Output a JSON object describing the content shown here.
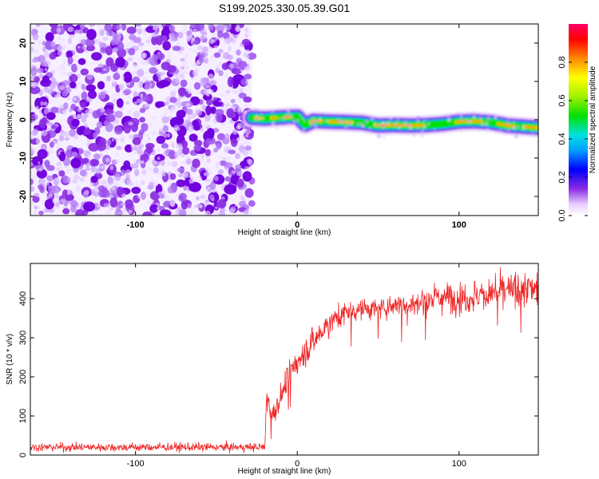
{
  "title": "S199.2025.330.05.39.G01",
  "colors": {
    "snr_line": "#ee2222",
    "speckle": "#7a00e0",
    "axis": "#000000"
  },
  "chart_data": [
    {
      "type": "heatmap",
      "name": "spectrogram",
      "xlabel": "Height of straight line (km)",
      "ylabel": "Frequency (Hz)",
      "xlim": [
        -165,
        149
      ],
      "ylim": [
        -25,
        25
      ],
      "x_ticks": [
        -100,
        0,
        100
      ],
      "y_ticks": [
        -20,
        -10,
        0,
        10,
        20
      ],
      "noise_region_x": [
        -165,
        -28
      ],
      "signal_track": {
        "x": [
          -28,
          -20,
          -10,
          0,
          5,
          10,
          20,
          30,
          40,
          50,
          60,
          70,
          80,
          90,
          100,
          110,
          120,
          130,
          140,
          149
        ],
        "freq_hz": [
          0.5,
          0.3,
          0.6,
          0.8,
          -1.3,
          -0.3,
          -0.5,
          -0.6,
          -0.8,
          -1.5,
          -1.4,
          -1.5,
          -1.4,
          -1.1,
          -0.5,
          -0.4,
          -0.7,
          -1.5,
          -1.8,
          -2.1
        ]
      },
      "colorbar": {
        "label": "Normalized spectral amplitude",
        "ticks": [
          "0.0",
          "0.2",
          "0.4",
          "0.6",
          "0.8"
        ],
        "range": [
          0,
          1
        ]
      }
    },
    {
      "type": "line",
      "name": "snr",
      "xlabel": "Height of straight line (km)",
      "ylabel": "SNR (10 * v/v)",
      "xlim": [
        -165,
        149
      ],
      "ylim": [
        0,
        490
      ],
      "x_ticks": [
        -100,
        0,
        100
      ],
      "y_ticks": [
        0,
        100,
        200,
        300,
        400
      ],
      "series": [
        {
          "name": "SNR",
          "x": [
            -165,
            -140,
            -120,
            -100,
            -80,
            -60,
            -40,
            -30,
            -20,
            -19,
            -15,
            -10,
            -5,
            0,
            10,
            20,
            30,
            40,
            50,
            60,
            70,
            80,
            90,
            100,
            110,
            120,
            130,
            140,
            149
          ],
          "mean": [
            20,
            20,
            20,
            20,
            20,
            20,
            20,
            20,
            20,
            150,
            100,
            150,
            200,
            240,
            290,
            340,
            365,
            375,
            370,
            385,
            385,
            395,
            405,
            400,
            405,
            415,
            420,
            420,
            430
          ],
          "noise": [
            9,
            9,
            9,
            9,
            9,
            9,
            9,
            9,
            9,
            30,
            28,
            30,
            30,
            30,
            30,
            28,
            25,
            22,
            22,
            22,
            25,
            30,
            32,
            35,
            35,
            38,
            38,
            40,
            42
          ]
        }
      ]
    }
  ]
}
